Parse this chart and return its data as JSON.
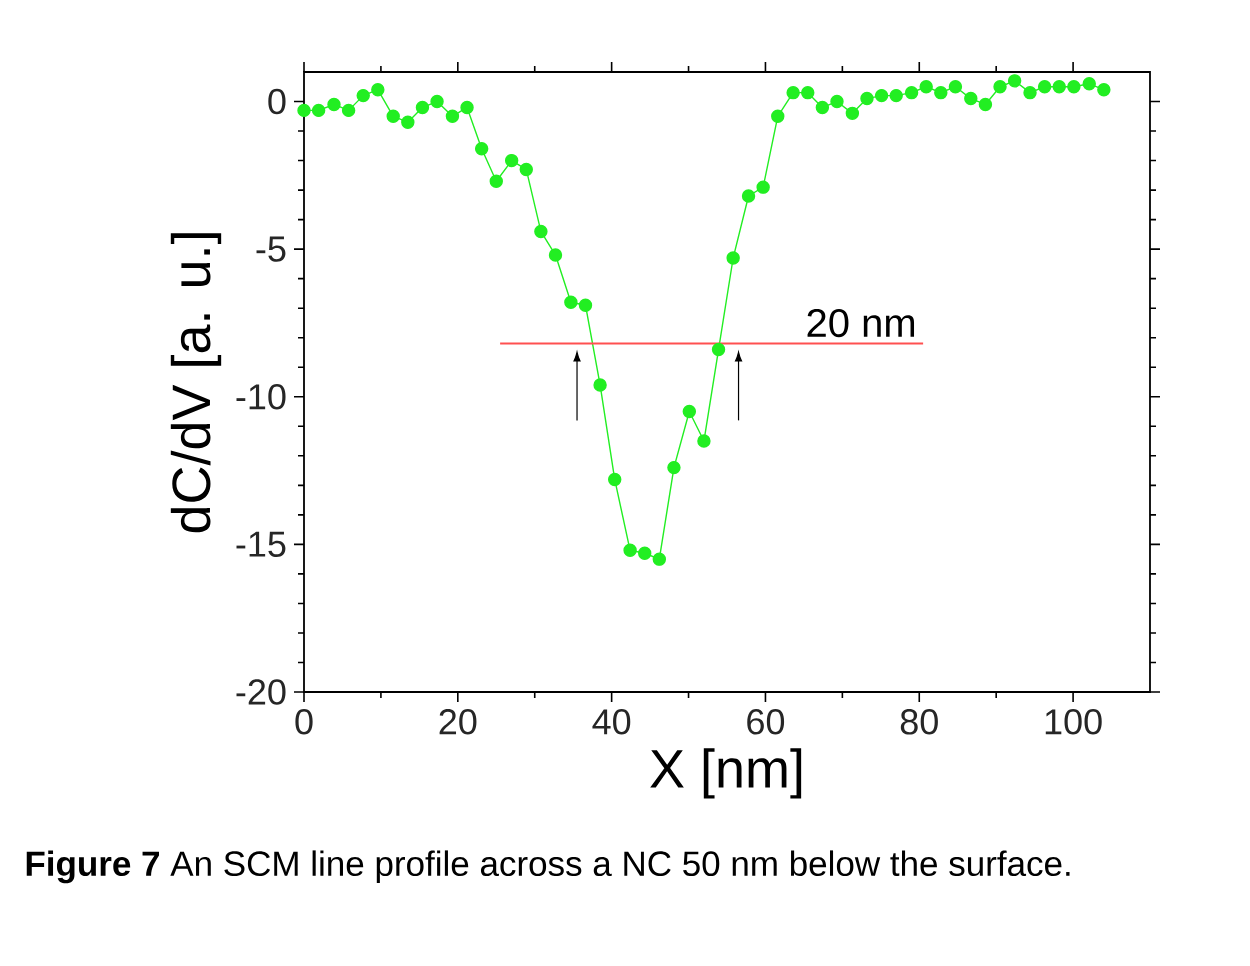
{
  "chart_data": {
    "type": "line",
    "xlabel": "X [nm]",
    "ylabel": "dC/dV [a. u.]",
    "xlim": [
      0,
      110
    ],
    "ylim": [
      -20,
      1
    ],
    "xticks": [
      0,
      20,
      40,
      60,
      80,
      100
    ],
    "yticks": [
      0,
      -5,
      -10,
      -15,
      -20
    ],
    "marker": "circle",
    "line_style": "solid",
    "grid": false,
    "legend": false,
    "series": [
      {
        "color": "#22ee22",
        "x": [
          0.0,
          1.9,
          3.9,
          5.8,
          7.7,
          9.6,
          11.6,
          13.5,
          15.4,
          17.3,
          19.3,
          21.2,
          23.1,
          25.0,
          27.0,
          28.9,
          30.8,
          32.7,
          34.7,
          36.6,
          38.5,
          40.4,
          42.4,
          44.3,
          46.2,
          48.1,
          50.1,
          52.0,
          53.9,
          55.8,
          57.8,
          59.7,
          61.6,
          63.6,
          65.5,
          67.4,
          69.3,
          71.3,
          73.2,
          75.1,
          77.0,
          79.0,
          80.9,
          82.8,
          84.7,
          86.7,
          88.6,
          90.5,
          92.4,
          94.4,
          96.3,
          98.2,
          100.1,
          102.1,
          104.0
        ],
        "values": [
          -0.3,
          -0.3,
          -0.1,
          -0.3,
          0.2,
          0.4,
          -0.5,
          -0.7,
          -0.2,
          0.0,
          -0.5,
          -0.2,
          -1.6,
          -2.7,
          -2.0,
          -2.3,
          -4.4,
          -5.2,
          -6.8,
          -6.9,
          -9.6,
          -12.8,
          -15.2,
          -15.3,
          -15.5,
          -12.4,
          -10.5,
          -11.5,
          -8.4,
          -5.3,
          -3.2,
          -2.9,
          -0.5,
          0.3,
          0.3,
          -0.2,
          0.0,
          -0.4,
          0.1,
          0.2,
          0.2,
          0.3,
          0.5,
          0.3,
          0.5,
          0.1,
          -0.1,
          0.5,
          0.7,
          0.3,
          0.5,
          0.5,
          0.5,
          0.6,
          0.4
        ]
      },
      {
        "type": "line",
        "name": "20 nm",
        "marker": "none",
        "color": "#ff5050",
        "x": [
          25.5,
          80.5
        ],
        "values": [
          -8.2,
          -8.2
        ]
      }
    ],
    "annotations": [
      "**Figure 7** An SCM line profile across a NC 50 nm below the surface."
    ]
  }
}
